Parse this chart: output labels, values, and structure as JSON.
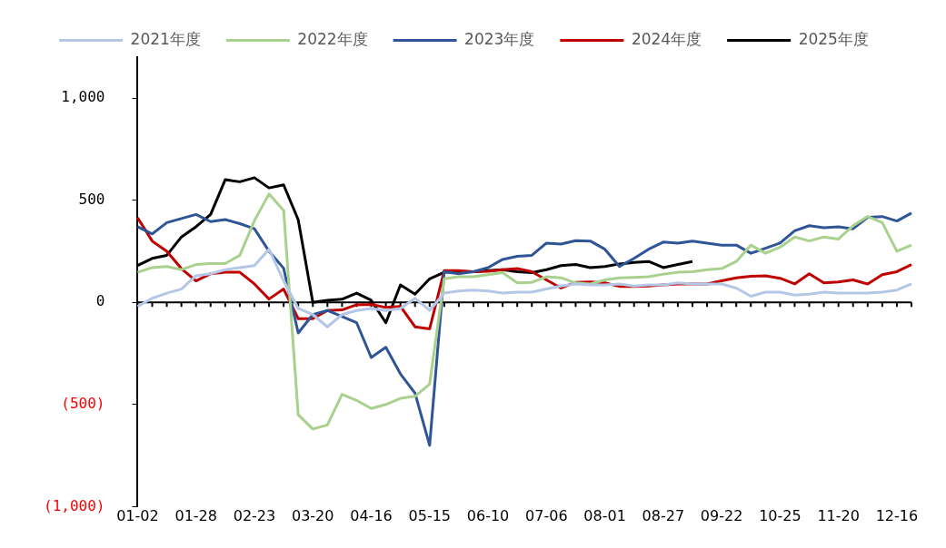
{
  "chart_data": {
    "type": "line",
    "legend": "top",
    "marker": "none",
    "categories": [
      "01-02",
      null,
      null,
      null,
      "01-28",
      null,
      null,
      null,
      "02-23",
      null,
      null,
      null,
      "03-20",
      null,
      null,
      null,
      "04-16",
      null,
      null,
      null,
      "05-15",
      null,
      null,
      null,
      "06-10",
      null,
      null,
      null,
      "07-06",
      null,
      null,
      null,
      "08-01",
      null,
      null,
      null,
      "08-27",
      null,
      null,
      null,
      "09-22",
      null,
      null,
      null,
      "10-25",
      null,
      null,
      null,
      "11-20",
      null,
      null,
      null,
      "12-16",
      null
    ],
    "ylim": [
      -1000,
      1200
    ],
    "yticks": [
      {
        "value": 1000,
        "label": "1,000"
      },
      500,
      0,
      {
        "value": -500,
        "label": "(500)"
      },
      {
        "value": -1000,
        "label": "(1,000)"
      }
    ],
    "series": [
      {
        "name": "2021年度",
        "color": "#b4c7e7",
        "values": [
          -20,
          20,
          45,
          65,
          130,
          140,
          160,
          170,
          180,
          260,
          105,
          -30,
          -60,
          -120,
          -60,
          -40,
          -30,
          -40,
          -30,
          20,
          -40,
          45,
          55,
          60,
          55,
          45,
          50,
          50,
          65,
          80,
          90,
          85,
          85,
          90,
          80,
          85,
          85,
          95,
          90,
          90,
          90,
          70,
          30,
          50,
          50,
          35,
          40,
          50,
          45,
          45,
          45,
          50,
          60,
          90
        ]
      },
      {
        "name": "2022年度",
        "color": "#a9d18e",
        "values": [
          147,
          170,
          175,
          160,
          185,
          190,
          190,
          230,
          400,
          530,
          450,
          -550,
          -620,
          -600,
          -450,
          -480,
          -520,
          -500,
          -470,
          -460,
          -400,
          115,
          125,
          125,
          135,
          145,
          95,
          98,
          125,
          120,
          95,
          90,
          110,
          120,
          122,
          125,
          138,
          147,
          150,
          160,
          165,
          200,
          280,
          240,
          270,
          320,
          300,
          320,
          310,
          375,
          420,
          390,
          250,
          280
        ]
      },
      {
        "name": "2023年度",
        "color": "#2f5597",
        "values": [
          370,
          335,
          390,
          410,
          430,
          395,
          405,
          385,
          360,
          250,
          167,
          -150,
          -60,
          -40,
          -70,
          -100,
          -270,
          -220,
          -350,
          -445,
          -700,
          150,
          140,
          150,
          170,
          210,
          225,
          230,
          290,
          285,
          302,
          300,
          260,
          175,
          215,
          260,
          295,
          290,
          300,
          290,
          280,
          280,
          240,
          265,
          290,
          350,
          375,
          365,
          370,
          360,
          416,
          420,
          398,
          437
        ]
      },
      {
        "name": "2024年度",
        "color": "#c00000",
        "values": [
          414,
          300,
          250,
          165,
          105,
          140,
          147,
          147,
          90,
          16,
          65,
          -80,
          -80,
          -40,
          -37,
          -12,
          -10,
          -25,
          -20,
          -120,
          -130,
          155,
          155,
          150,
          152,
          160,
          165,
          150,
          110,
          70,
          98,
          100,
          95,
          78,
          78,
          80,
          85,
          90,
          90,
          90,
          105,
          120,
          128,
          130,
          118,
          90,
          140,
          95,
          100,
          110,
          90,
          135,
          150,
          185
        ]
      },
      {
        "name": "2025年度",
        "color": "#000000",
        "values": [
          180,
          215,
          230,
          320,
          370,
          430,
          600,
          590,
          610,
          560,
          575,
          404,
          0,
          10,
          15,
          45,
          10,
          -100,
          85,
          40,
          115,
          147,
          150,
          150,
          155,
          160,
          150,
          145,
          160,
          180,
          185,
          170,
          175,
          188,
          195,
          200,
          170,
          185,
          200,
          null,
          null,
          null,
          null,
          null,
          null,
          null,
          null,
          null,
          null,
          null,
          null,
          null,
          null,
          null
        ]
      }
    ]
  }
}
